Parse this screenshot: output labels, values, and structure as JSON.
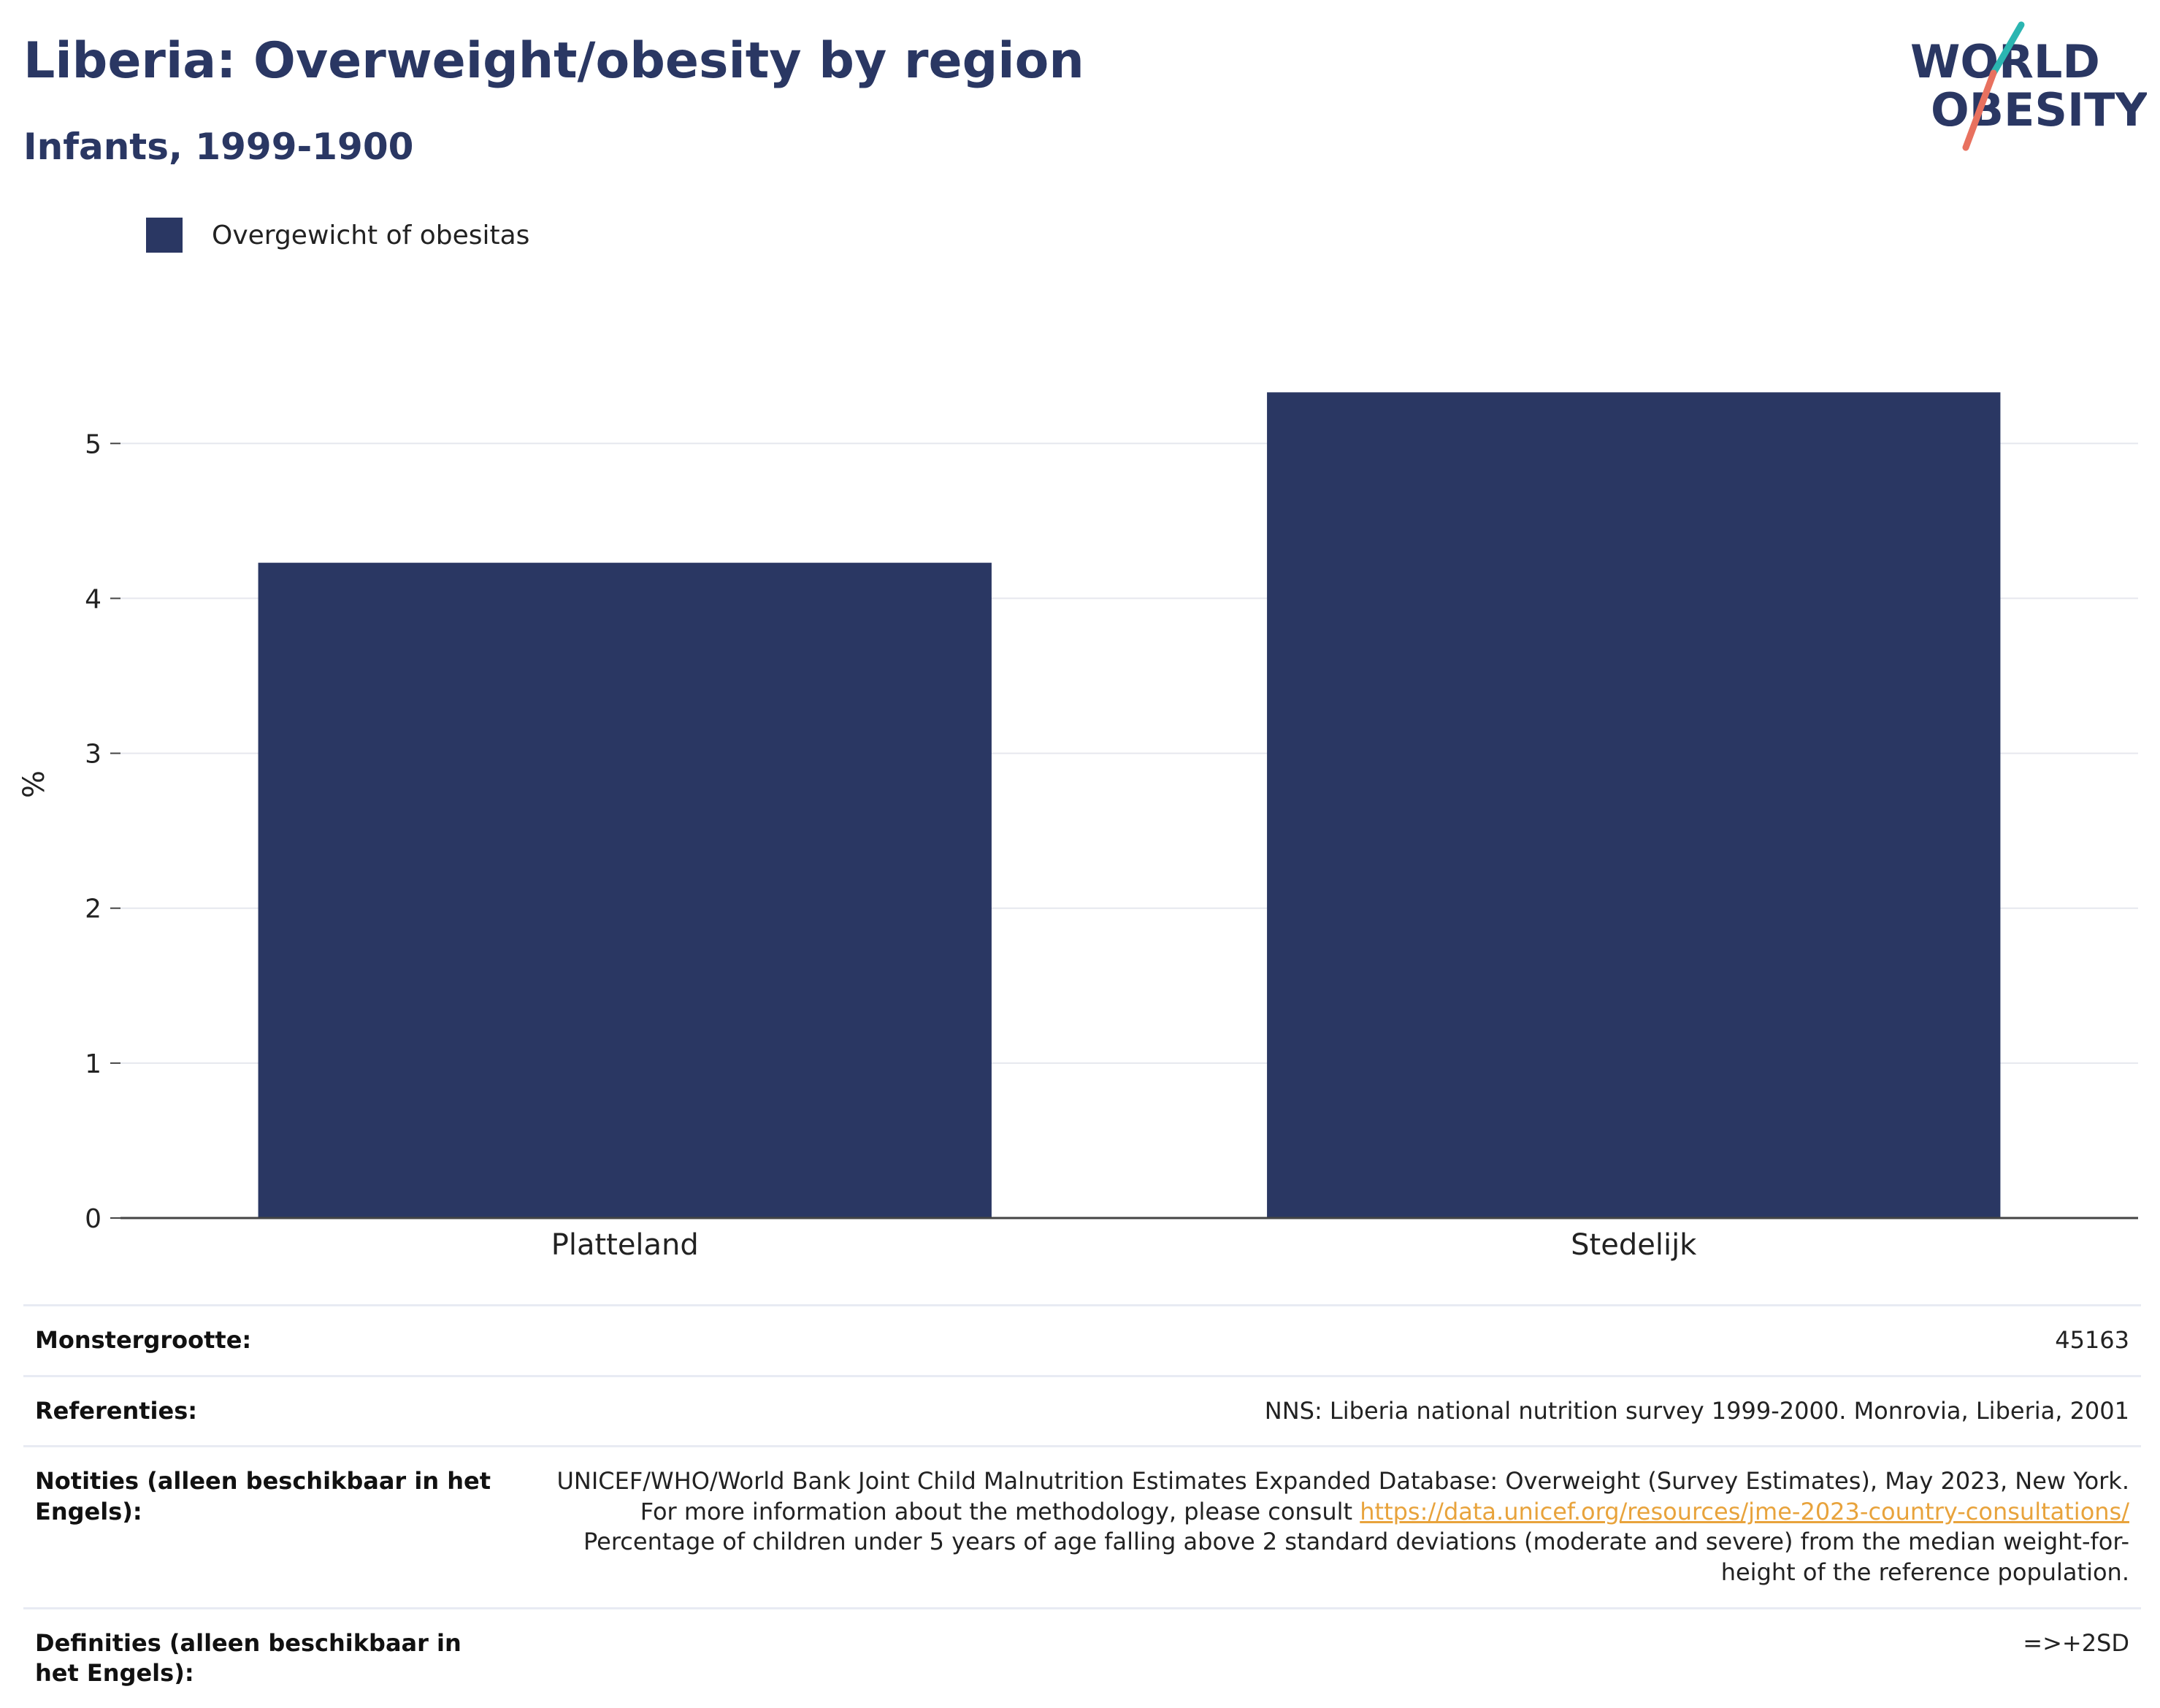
{
  "header": {
    "title": "Liberia: Overweight/obesity by region",
    "subtitle": "Infants, 1999-1900"
  },
  "logo": {
    "line1": "WORLD",
    "line2": "OBESITY"
  },
  "legend": {
    "label": "Overgewicht of obesitas",
    "color": "#2a3763"
  },
  "chart_data": {
    "type": "bar",
    "categories": [
      "Platteland",
      "Stedelijk"
    ],
    "series": [
      {
        "name": "Overgewicht of obesitas",
        "values": [
          4.23,
          5.33
        ]
      }
    ],
    "ylabel": "%",
    "ylim": [
      0,
      5.6
    ],
    "yticks": [
      "0",
      "1",
      "2",
      "3",
      "4",
      "5"
    ],
    "grid": true,
    "legend_position": "top-left",
    "bar_color": "#2a3763"
  },
  "info": {
    "sample_label": "Monstergrootte:",
    "sample_value": "45163",
    "references_label": "Referenties:",
    "references_value": "NNS: Liberia national nutrition survey 1999-2000. Monrovia, Liberia, 2001",
    "notes_label": "Notities (alleen beschikbaar in het Engels):",
    "notes_text_1": "UNICEF/WHO/World Bank Joint Child Malnutrition Estimates Expanded Database: Overweight (Survey Estimates), May 2023, New York. For more information about the methodology, please consult ",
    "notes_link": "https://data.unicef.org/resources/jme-2023-country-consultations/",
    "notes_text_2": "Percentage of children under 5 years of age falling above 2 standard deviations (moderate and severe) from the median weight-for-height of the reference population.",
    "definitions_label": "Definities (alleen beschikbaar in het Engels):",
    "definitions_value": "=>+2SD"
  }
}
